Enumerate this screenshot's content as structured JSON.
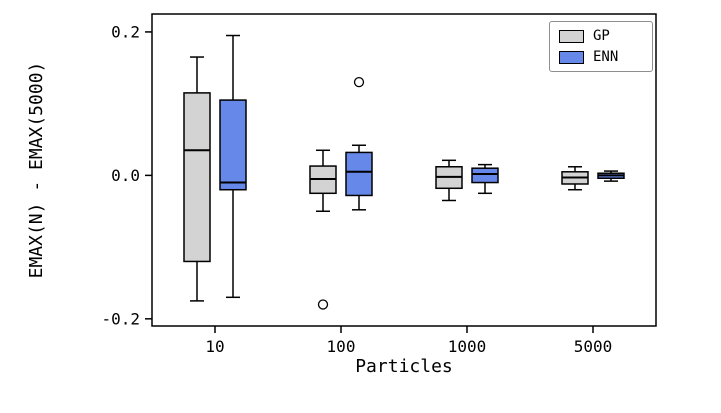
{
  "chart_data": {
    "type": "boxplot",
    "title": "",
    "xlabel": "Particles",
    "ylabel": "EMAX(N) - EMAX(5000)",
    "categories": [
      "10",
      "100",
      "1000",
      "5000"
    ],
    "ylim": [
      -0.21,
      0.225
    ],
    "yticks": [
      -0.2,
      0.0,
      0.2
    ],
    "ytick_labels": [
      "-0.2",
      "0.0",
      "0.2"
    ],
    "grid": false,
    "legend_position": "upper-right",
    "colors": {
      "gp": "#d3d3d3",
      "enn": "#6688e8",
      "edge": "#000000"
    },
    "series": [
      {
        "name": "GP",
        "color": "#d3d3d3",
        "boxes": [
          {
            "whislo": -0.175,
            "q1": -0.12,
            "med": 0.035,
            "q3": 0.115,
            "whishi": 0.165,
            "fliers": []
          },
          {
            "whislo": -0.05,
            "q1": -0.025,
            "med": -0.005,
            "q3": 0.013,
            "whishi": 0.035,
            "fliers": [
              -0.18
            ]
          },
          {
            "whislo": -0.035,
            "q1": -0.018,
            "med": -0.002,
            "q3": 0.012,
            "whishi": 0.021,
            "fliers": []
          },
          {
            "whislo": -0.02,
            "q1": -0.012,
            "med": -0.003,
            "q3": 0.005,
            "whishi": 0.012,
            "fliers": []
          }
        ]
      },
      {
        "name": "ENN",
        "color": "#6688e8",
        "boxes": [
          {
            "whislo": -0.17,
            "q1": -0.02,
            "med": -0.01,
            "q3": 0.105,
            "whishi": 0.195,
            "fliers": []
          },
          {
            "whislo": -0.048,
            "q1": -0.028,
            "med": 0.005,
            "q3": 0.032,
            "whishi": 0.042,
            "fliers": [
              0.13
            ]
          },
          {
            "whislo": -0.025,
            "q1": -0.01,
            "med": 0.002,
            "q3": 0.01,
            "whishi": 0.015,
            "fliers": []
          },
          {
            "whislo": -0.008,
            "q1": -0.004,
            "med": 0.0,
            "q3": 0.003,
            "whishi": 0.006,
            "fliers": []
          }
        ]
      }
    ]
  }
}
